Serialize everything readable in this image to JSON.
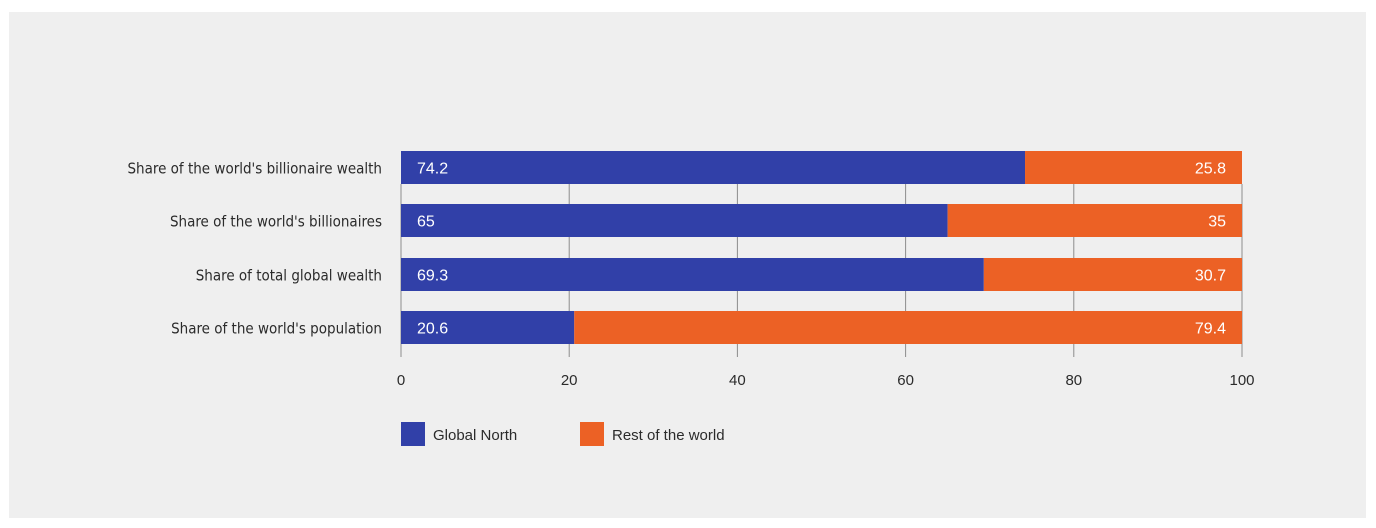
{
  "chart_data": {
    "type": "bar",
    "orientation": "horizontal",
    "stacked": true,
    "categories": [
      "Share of the world's billionaire wealth",
      "Share of the world's billionaires",
      "Share of total global wealth",
      "Share of the world's population"
    ],
    "series": [
      {
        "name": "Global North",
        "color": "#3140a8",
        "values": [
          74.2,
          65,
          69.3,
          20.6
        ]
      },
      {
        "name": "Rest of the world",
        "color": "#ec6125",
        "values": [
          25.8,
          35,
          30.7,
          79.4
        ]
      }
    ],
    "xlim": [
      0,
      100
    ],
    "xticks": [
      0,
      20,
      40,
      60,
      80,
      100
    ],
    "grid": true,
    "legend": "bottom-left",
    "value_labels": [
      "74.2",
      "65",
      "69.3",
      "20.6",
      "25.8",
      "35",
      "30.7",
      "79.4"
    ]
  }
}
